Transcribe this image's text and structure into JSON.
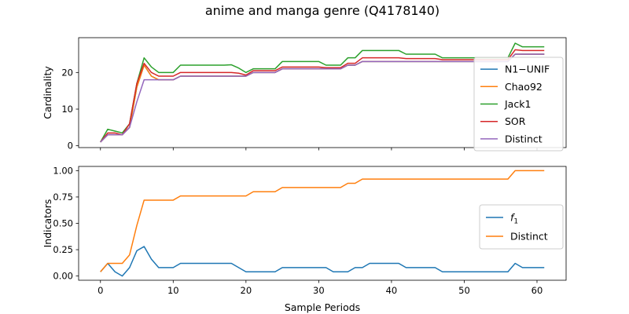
{
  "figure": {
    "title": "anime and manga genre (Q4178140)"
  },
  "chart_data": [
    {
      "type": "line",
      "panel": "top",
      "xlabel": "",
      "ylabel": "Cardinality",
      "xlim": [
        -3,
        64
      ],
      "ylim": [
        -0.5,
        29.5
      ],
      "xticks": [
        0,
        10,
        20,
        30,
        40,
        50,
        60
      ],
      "show_xticklabels": false,
      "yticks": [
        0,
        10,
        20
      ],
      "ytick_labels": [
        "0",
        "10",
        "20"
      ],
      "grid": false,
      "legend_position": "right",
      "series": [
        {
          "name": "N1−UNIF",
          "color": "#1f77b4",
          "values": [
            1,
            3,
            3,
            3,
            5,
            16,
            22,
            19,
            18,
            18,
            18,
            19,
            19,
            19,
            19,
            19,
            19,
            19,
            19,
            19,
            19,
            20,
            20,
            20,
            20,
            21,
            21,
            21,
            21,
            21,
            21,
            21,
            21,
            21,
            22,
            22,
            23,
            23,
            23,
            23,
            23,
            23,
            23,
            23,
            23,
            23,
            23,
            23,
            23,
            23,
            23,
            23,
            23,
            23,
            23,
            23,
            23,
            25,
            25,
            25,
            25,
            25
          ]
        },
        {
          "name": "Chao92",
          "color": "#ff7f0e",
          "values": [
            1,
            3,
            3,
            3,
            5,
            16,
            22,
            19,
            18,
            18,
            18,
            19,
            19,
            19,
            19,
            19,
            19,
            19,
            19,
            19,
            19,
            20,
            20,
            20,
            20,
            21,
            21,
            21,
            21,
            21,
            21,
            21,
            21,
            21,
            22,
            22,
            23,
            23,
            23,
            23,
            23,
            23,
            23,
            23,
            23,
            23,
            23,
            23,
            23,
            23,
            23,
            23,
            23,
            23,
            23,
            23,
            23,
            25,
            25,
            25,
            25,
            25
          ]
        },
        {
          "name": "Jack1",
          "color": "#2ca02c",
          "values": [
            1,
            4.5,
            4,
            3.5,
            6,
            17,
            24,
            21.5,
            20,
            20,
            20,
            22,
            22,
            22,
            22,
            22,
            22,
            22,
            22.1,
            21.2,
            20,
            21,
            21,
            21,
            21,
            23,
            23,
            23,
            23,
            23,
            23,
            22,
            22,
            22,
            24,
            24,
            26,
            26,
            26,
            26,
            26,
            26,
            25,
            25,
            25,
            25,
            25,
            24,
            24,
            24,
            24,
            24,
            24,
            24,
            24,
            24,
            24,
            28,
            27,
            27,
            27,
            27
          ]
        },
        {
          "name": "SOR",
          "color": "#d62728",
          "values": [
            1,
            3.5,
            3.5,
            3,
            6,
            17,
            22.5,
            20,
            19,
            19,
            19,
            20,
            20,
            20,
            20,
            20,
            20,
            20,
            20,
            19.8,
            19.3,
            20.5,
            20.5,
            20.5,
            20.5,
            21.5,
            21.5,
            21.5,
            21.5,
            21.5,
            21.5,
            21.3,
            21.3,
            21.3,
            22.5,
            22.5,
            24,
            24,
            24,
            24,
            24,
            24,
            23.8,
            23.8,
            23.8,
            23.8,
            23.8,
            23.5,
            23.5,
            23.5,
            23.5,
            23.5,
            23.5,
            23.5,
            23.5,
            23.5,
            23.5,
            26.2,
            26,
            26,
            26,
            26
          ]
        },
        {
          "name": "Distinct",
          "color": "#9467bd",
          "values": [
            1,
            3,
            3,
            3,
            5,
            12,
            18,
            18,
            18,
            18,
            18,
            19,
            19,
            19,
            19,
            19,
            19,
            19,
            19,
            19,
            19,
            20,
            20,
            20,
            20,
            21,
            21,
            21,
            21,
            21,
            21,
            21,
            21,
            21,
            22,
            22,
            23,
            23,
            23,
            23,
            23,
            23,
            23,
            23,
            23,
            23,
            23,
            23,
            23,
            23,
            23,
            23,
            23,
            23,
            23,
            23,
            23,
            25,
            25,
            25,
            25,
            25
          ]
        }
      ]
    },
    {
      "type": "line",
      "panel": "bottom",
      "xlabel": "Sample Periods",
      "ylabel": "Indicators",
      "xlim": [
        -3,
        64
      ],
      "ylim": [
        -0.04,
        1.04
      ],
      "xticks": [
        0,
        10,
        20,
        30,
        40,
        50,
        60
      ],
      "xtick_labels": [
        "0",
        "10",
        "20",
        "30",
        "40",
        "50",
        "60"
      ],
      "yticks": [
        0,
        0.25,
        0.5,
        0.75,
        1.0
      ],
      "ytick_labels": [
        "0.00",
        "0.25",
        "0.50",
        "0.75",
        "1.00"
      ],
      "grid": false,
      "legend_position": "right",
      "series": [
        {
          "name": "f1",
          "color": "#1f77b4",
          "values": [
            0.04,
            0.12,
            0.04,
            0.0,
            0.08,
            0.24,
            0.28,
            0.16,
            0.08,
            0.08,
            0.08,
            0.12,
            0.12,
            0.12,
            0.12,
            0.12,
            0.12,
            0.12,
            0.12,
            0.08,
            0.04,
            0.04,
            0.04,
            0.04,
            0.04,
            0.08,
            0.08,
            0.08,
            0.08,
            0.08,
            0.08,
            0.08,
            0.04,
            0.04,
            0.04,
            0.08,
            0.08,
            0.12,
            0.12,
            0.12,
            0.12,
            0.12,
            0.08,
            0.08,
            0.08,
            0.08,
            0.08,
            0.04,
            0.04,
            0.04,
            0.04,
            0.04,
            0.04,
            0.04,
            0.04,
            0.04,
            0.04,
            0.12,
            0.08,
            0.08,
            0.08,
            0.08
          ]
        },
        {
          "name": "Distinct",
          "color": "#ff7f0e",
          "values": [
            0.04,
            0.12,
            0.12,
            0.12,
            0.2,
            0.48,
            0.72,
            0.72,
            0.72,
            0.72,
            0.72,
            0.76,
            0.76,
            0.76,
            0.76,
            0.76,
            0.76,
            0.76,
            0.76,
            0.76,
            0.76,
            0.8,
            0.8,
            0.8,
            0.8,
            0.84,
            0.84,
            0.84,
            0.84,
            0.84,
            0.84,
            0.84,
            0.84,
            0.84,
            0.88,
            0.88,
            0.92,
            0.92,
            0.92,
            0.92,
            0.92,
            0.92,
            0.92,
            0.92,
            0.92,
            0.92,
            0.92,
            0.92,
            0.92,
            0.92,
            0.92,
            0.92,
            0.92,
            0.92,
            0.92,
            0.92,
            0.92,
            1.0,
            1.0,
            1.0,
            1.0,
            1.0
          ]
        }
      ]
    }
  ]
}
